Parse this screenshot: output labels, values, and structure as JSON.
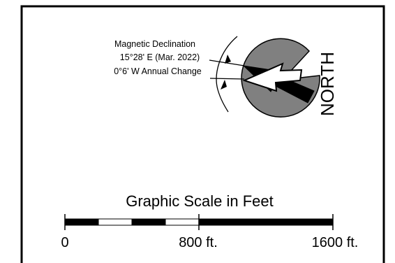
{
  "declination": {
    "title": "Magnetic Declination",
    "value": "15°28' E (Mar. 2022)",
    "annual_change": "0°6' W Annual Change"
  },
  "north_arrow": {
    "label": "NORTH"
  },
  "scale": {
    "title": "Graphic Scale in Feet",
    "tick_labels": [
      "0",
      "800 ft.",
      "1600 ft."
    ]
  },
  "colors": {
    "ink": "#000000",
    "disc": "#808080",
    "paper": "#ffffff"
  }
}
